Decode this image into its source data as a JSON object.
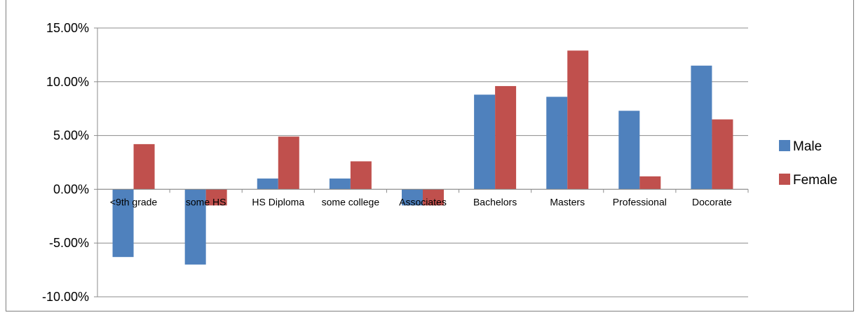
{
  "chart_data": {
    "type": "bar",
    "categories": [
      "<9th grade",
      "some HS",
      "HS Diploma",
      "some college",
      "Associates",
      "Bachelors",
      "Masters",
      "Professional",
      "Docorate"
    ],
    "series": [
      {
        "name": "Male",
        "color": "#4f81bd",
        "values": [
          -6.3,
          -7.0,
          1.0,
          1.0,
          -1.5,
          8.8,
          8.6,
          7.3,
          11.5
        ]
      },
      {
        "name": "Female",
        "color": "#c0504d",
        "values": [
          4.2,
          -1.5,
          4.9,
          2.6,
          -1.5,
          9.6,
          12.9,
          1.2,
          6.5
        ]
      }
    ],
    "y_ticks": [
      "15.00%",
      "10.00%",
      "5.00%",
      "0.00%",
      "-5.00%",
      "-10.00%"
    ],
    "ylim": [
      -10,
      15
    ],
    "grid": true,
    "legend": "right",
    "title": "",
    "xlabel": "",
    "ylabel": ""
  }
}
